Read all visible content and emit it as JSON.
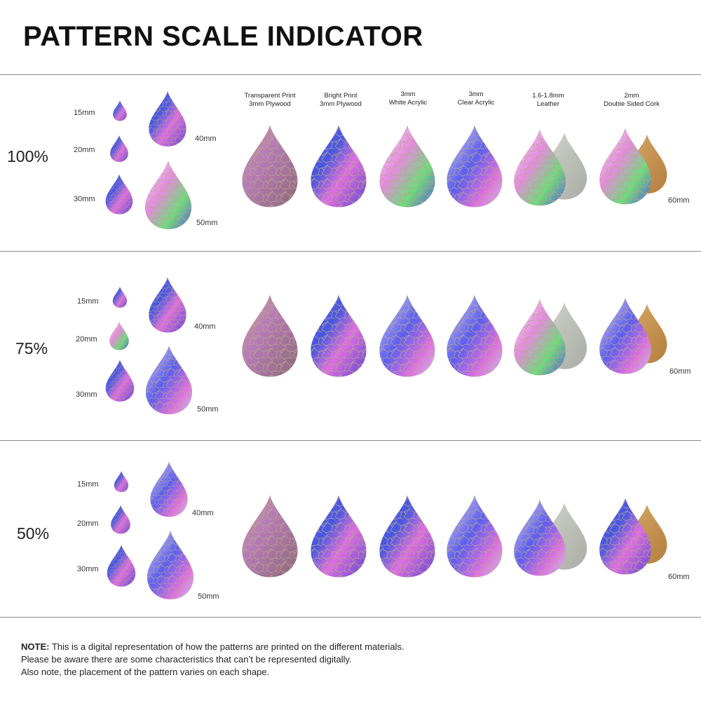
{
  "title": "PATTERN SCALE INDICATOR",
  "columns": [
    {
      "line1": "Transparent Print",
      "line2": "3mm Plywood"
    },
    {
      "line1": "Bright Print",
      "line2": "3mm Plywood"
    },
    {
      "line1": "3mm",
      "line2": "White Acrylic"
    },
    {
      "line1": "3mm",
      "line2": "Clear Acrylic"
    },
    {
      "line1": "1.6-1.8mm",
      "line2": "Leather"
    },
    {
      "line1": "2mm",
      "line2": "Double Sided Cork"
    }
  ],
  "rows": [
    {
      "scale": "100%",
      "s15": "15mm",
      "s20": "20mm",
      "s30": "30mm",
      "s40": "40mm",
      "s50": "50mm",
      "s60": "60mm"
    },
    {
      "scale": "75%",
      "s15": "15mm",
      "s20": "20mm",
      "s30": "30mm",
      "s40": "40mm",
      "s50": "50mm",
      "s60": "60mm"
    },
    {
      "scale": "50%",
      "s15": "15mm",
      "s20": "20mm",
      "s30": "30mm",
      "s40": "40mm",
      "s50": "50mm",
      "s60": "60mm"
    }
  ],
  "note": {
    "label": "NOTE:",
    "line1": "This is a digital representation of how the patterns are printed on the different materials.",
    "line2": "Please be aware there are some characteristics that can’t be represented digitally.",
    "line3": "Also note, the placement of the pattern varies on each shape."
  },
  "colors": {
    "purple": "#6a4fd6",
    "pink": "#e064d8",
    "blue": "#3d4fd8",
    "green": "#5fd86a",
    "wood": "#b48a6a",
    "leather": "#b8bdb4",
    "cork": "#c89452"
  }
}
